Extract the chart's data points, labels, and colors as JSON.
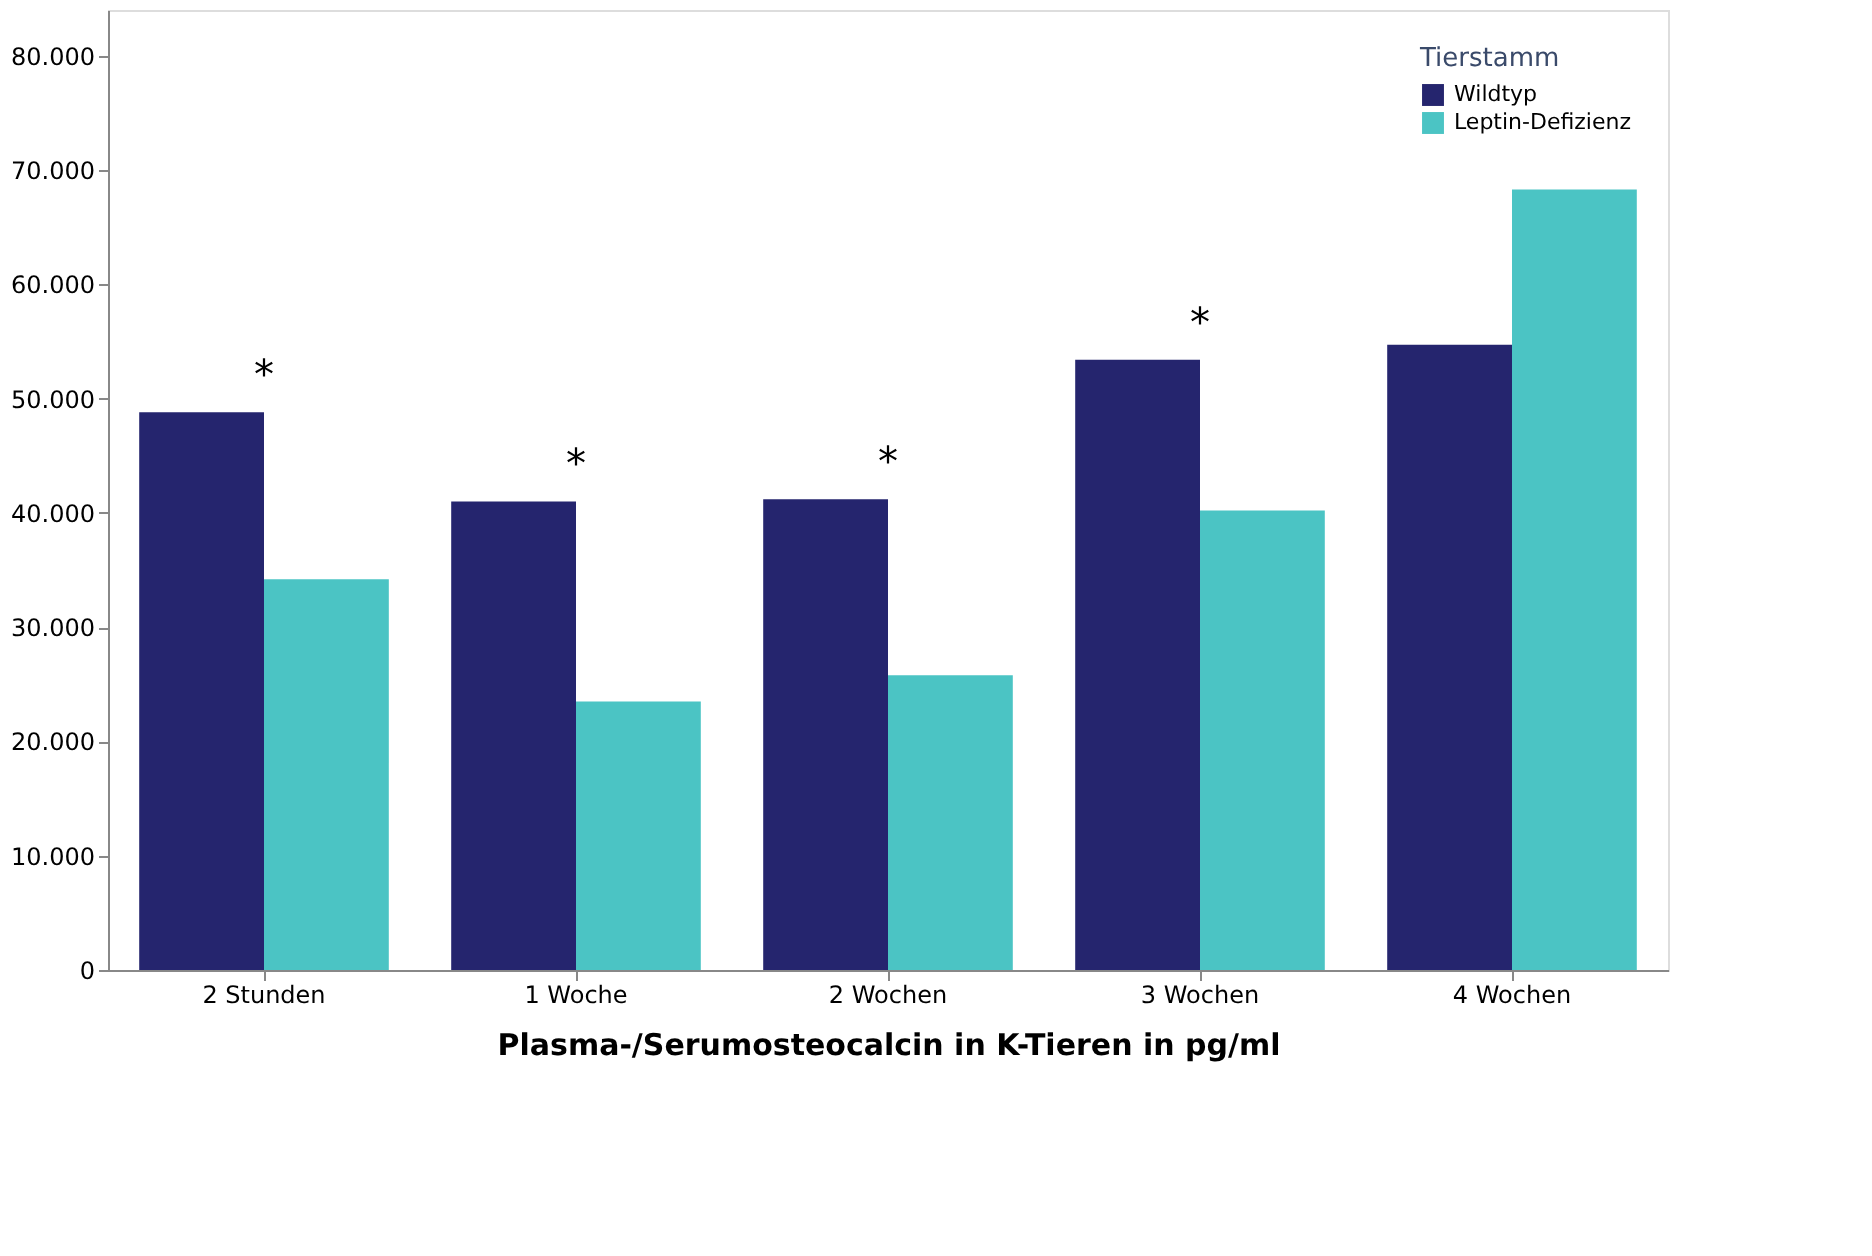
{
  "chart_data": {
    "type": "bar",
    "xlabel": "Plasma-/Serumosteocalcin in K-Tieren in pg/ml",
    "legend_title": "Tierstamm",
    "categories": [
      "2 Stunden",
      "1 Woche",
      "2 Wochen",
      "3 Wochen",
      "4 Wochen"
    ],
    "series": [
      {
        "name": "Wildtyp",
        "color": "#25256e",
        "values": [
          48800,
          41000,
          41200,
          53400,
          54700
        ]
      },
      {
        "name": "Leptin-Defizienz",
        "color": "#4bc4c4",
        "values": [
          34200,
          23500,
          25800,
          40200,
          68300
        ]
      }
    ],
    "ylim": [
      0,
      84000
    ],
    "yticks": [
      0,
      {
        "value": 10000,
        "label": "10.000"
      },
      {
        "value": 20000,
        "label": "20.000"
      },
      {
        "value": 30000,
        "label": "30.000"
      },
      {
        "value": 40000,
        "label": "40.000"
      },
      {
        "value": 50000,
        "label": "50.000"
      },
      {
        "value": 60000,
        "label": "60.000"
      },
      {
        "value": 70000,
        "label": "70.000"
      },
      {
        "value": 80000,
        "label": "80.000"
      }
    ],
    "grid": false,
    "legend": "top right",
    "annotations": [
      "*",
      "*",
      "*",
      "*"
    ]
  }
}
